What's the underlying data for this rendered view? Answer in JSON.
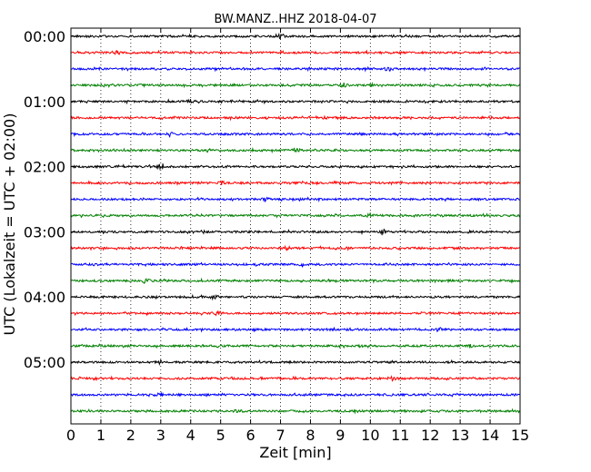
{
  "chart_data": {
    "type": "line",
    "title": "BW.MANZ..HHZ 2018-04-07",
    "xlabel": "Zeit  [min]",
    "ylabel": "UTC (Lokalzeit = UTC + 02:00)",
    "xlim": [
      0,
      15
    ],
    "x_ticks": [
      "0",
      "1",
      "2",
      "3",
      "4",
      "5",
      "6",
      "7",
      "8",
      "9",
      "10",
      "11",
      "12",
      "13",
      "14",
      "15"
    ],
    "grid": "vertical dotted at each minute",
    "row_interval_min": 15,
    "y_ticks": [
      {
        "label": "00:00",
        "row": 0
      },
      {
        "label": "01:00",
        "row": 4
      },
      {
        "label": "02:00",
        "row": 8
      },
      {
        "label": "03:00",
        "row": 12
      },
      {
        "label": "04:00",
        "row": 16
      },
      {
        "label": "05:00",
        "row": 20
      }
    ],
    "colors": [
      "#000000",
      "#ff0000",
      "#0000ff",
      "#008000"
    ],
    "series": [
      {
        "start": "00:00",
        "color": "#000000",
        "events": [
          {
            "x": 7.0,
            "amp": 2.2
          }
        ]
      },
      {
        "start": "00:15",
        "color": "#ff0000",
        "events": [
          {
            "x": 1.5,
            "amp": 1.6
          }
        ]
      },
      {
        "start": "00:30",
        "color": "#0000ff",
        "events": [
          {
            "x": 10.6,
            "amp": 1.5
          }
        ]
      },
      {
        "start": "00:45",
        "color": "#008000",
        "events": [
          {
            "x": 9.1,
            "amp": 1.8
          }
        ]
      },
      {
        "start": "01:00",
        "color": "#000000",
        "events": [
          {
            "x": 4.0,
            "amp": 1.5
          }
        ]
      },
      {
        "start": "01:15",
        "color": "#ff0000",
        "events": [
          {
            "x": 8.5,
            "amp": 1.4
          }
        ]
      },
      {
        "start": "01:30",
        "color": "#0000ff",
        "events": [
          {
            "x": 3.3,
            "amp": 2.0
          }
        ]
      },
      {
        "start": "01:45",
        "color": "#008000",
        "events": [
          {
            "x": 7.5,
            "amp": 1.5
          }
        ]
      },
      {
        "start": "02:00",
        "color": "#000000",
        "events": [
          {
            "x": 3.0,
            "amp": 3.5
          }
        ]
      },
      {
        "start": "02:15",
        "color": "#ff0000",
        "events": [
          {
            "x": 5.0,
            "amp": 1.8
          }
        ]
      },
      {
        "start": "02:30",
        "color": "#0000ff",
        "events": [
          {
            "x": 6.5,
            "amp": 1.4
          }
        ]
      },
      {
        "start": "02:45",
        "color": "#008000",
        "events": [
          {
            "x": 10.0,
            "amp": 1.4
          }
        ]
      },
      {
        "start": "03:00",
        "color": "#000000",
        "events": [
          {
            "x": 10.4,
            "amp": 1.8
          }
        ]
      },
      {
        "start": "03:15",
        "color": "#ff0000",
        "events": [
          {
            "x": 7.2,
            "amp": 1.5
          }
        ]
      },
      {
        "start": "03:30",
        "color": "#0000ff",
        "events": [
          {
            "x": 7.7,
            "amp": 2.2
          }
        ]
      },
      {
        "start": "03:45",
        "color": "#008000",
        "events": [
          {
            "x": 2.5,
            "amp": 1.4
          }
        ]
      },
      {
        "start": "04:00",
        "color": "#000000",
        "events": [
          {
            "x": 4.8,
            "amp": 1.8
          }
        ]
      },
      {
        "start": "04:15",
        "color": "#ff0000",
        "events": [
          {
            "x": 4.9,
            "amp": 1.7
          }
        ]
      },
      {
        "start": "04:30",
        "color": "#0000ff",
        "events": [
          {
            "x": 12.3,
            "amp": 1.4
          }
        ]
      },
      {
        "start": "04:45",
        "color": "#008000",
        "events": [
          {
            "x": 13.3,
            "amp": 1.4
          }
        ]
      },
      {
        "start": "05:00",
        "color": "#000000",
        "events": [
          {
            "x": 3.0,
            "amp": 1.5
          }
        ]
      },
      {
        "start": "05:15",
        "color": "#ff0000",
        "events": [
          {
            "x": 10.7,
            "amp": 1.8
          }
        ]
      },
      {
        "start": "05:30",
        "color": "#0000ff",
        "events": [
          {
            "x": 3.0,
            "amp": 1.6
          }
        ]
      },
      {
        "start": "05:45",
        "color": "#008000",
        "events": [
          {
            "x": 5.6,
            "amp": 1.6
          }
        ]
      }
    ]
  }
}
